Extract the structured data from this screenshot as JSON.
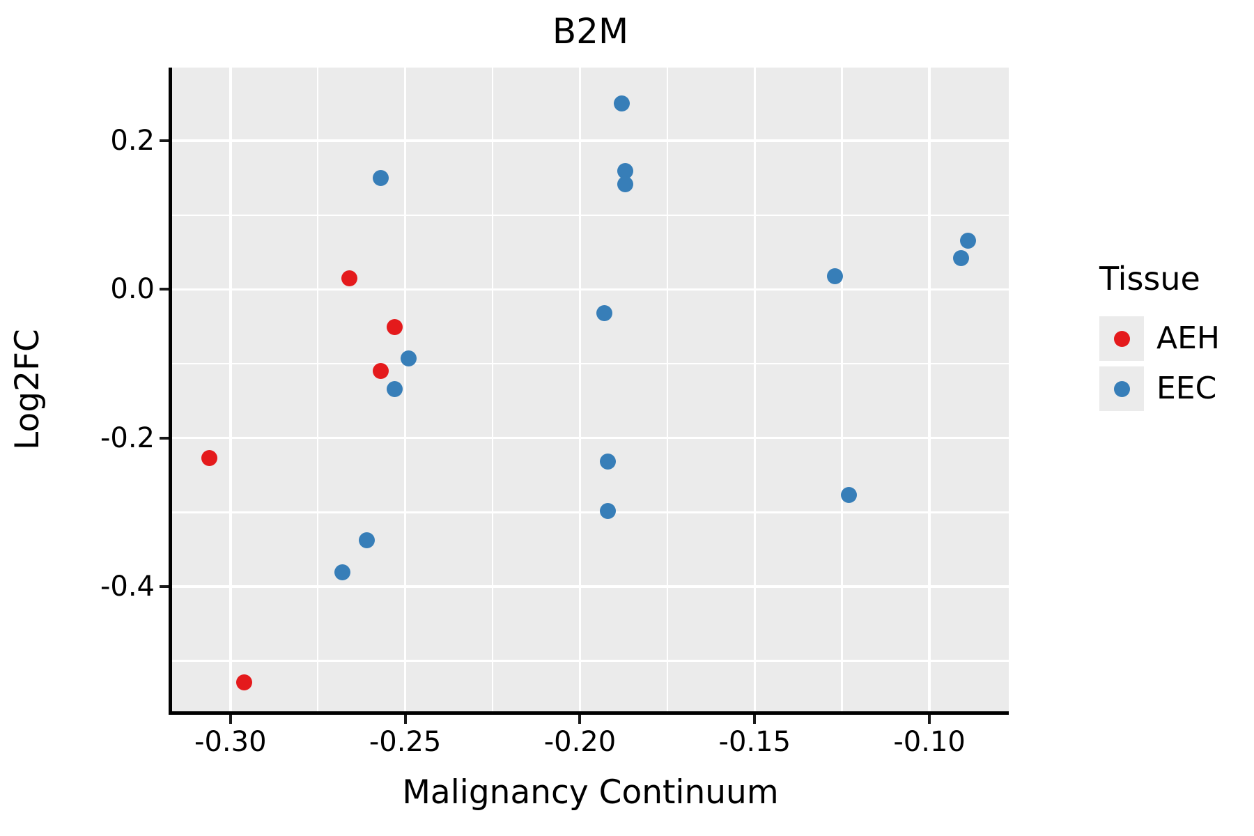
{
  "chart_data": {
    "type": "scatter",
    "title": "B2M",
    "xlabel": "Malignancy Continuum",
    "ylabel": "Log2FC",
    "xlim": [
      -0.3167,
      -0.0773
    ],
    "ylim": [
      -0.5678,
      0.2986
    ],
    "x_major_ticks": [
      -0.3,
      -0.25,
      -0.2,
      -0.15,
      -0.1
    ],
    "x_tick_labels": [
      "-0.30",
      "-0.25",
      "-0.20",
      "-0.15",
      "-0.10"
    ],
    "x_minor_gridlines": [
      -0.275,
      -0.225,
      -0.175,
      -0.125
    ],
    "y_major_ticks": [
      0.2,
      0.0,
      -0.2,
      -0.4
    ],
    "y_tick_labels": [
      "0.2",
      "0.0",
      "-0.2",
      "-0.4"
    ],
    "y_minor_gridlines": [
      0.1,
      -0.1,
      -0.3,
      -0.5
    ],
    "grid": "major and minor gridlines, white on gray panel",
    "panel_bg": "#EBEBEB",
    "grid_color": "#FFFFFF",
    "legend_position": "right",
    "legend": {
      "title": "Tissue",
      "entries": [
        {
          "label": "AEH",
          "color": "#E41A1C"
        },
        {
          "label": "EEC",
          "color": "#377EB8"
        }
      ]
    },
    "series": [
      {
        "name": "AEH",
        "color": "#E41A1C",
        "points": [
          [
            -0.306,
            -0.227
          ],
          [
            -0.296,
            -0.529
          ],
          [
            -0.266,
            0.015
          ],
          [
            -0.253,
            -0.051
          ],
          [
            -0.257,
            -0.11
          ]
        ]
      },
      {
        "name": "EEC",
        "color": "#377EB8",
        "points": [
          [
            -0.257,
            0.15
          ],
          [
            -0.249,
            -0.093
          ],
          [
            -0.253,
            -0.134
          ],
          [
            -0.261,
            -0.338
          ],
          [
            -0.268,
            -0.381
          ],
          [
            -0.188,
            0.25
          ],
          [
            -0.187,
            0.159
          ],
          [
            -0.187,
            0.142
          ],
          [
            -0.193,
            -0.032
          ],
          [
            -0.192,
            -0.232
          ],
          [
            -0.192,
            -0.298
          ],
          [
            -0.127,
            0.018
          ],
          [
            -0.123,
            -0.277
          ],
          [
            -0.089,
            0.066
          ],
          [
            -0.091,
            0.042
          ]
        ]
      }
    ]
  }
}
